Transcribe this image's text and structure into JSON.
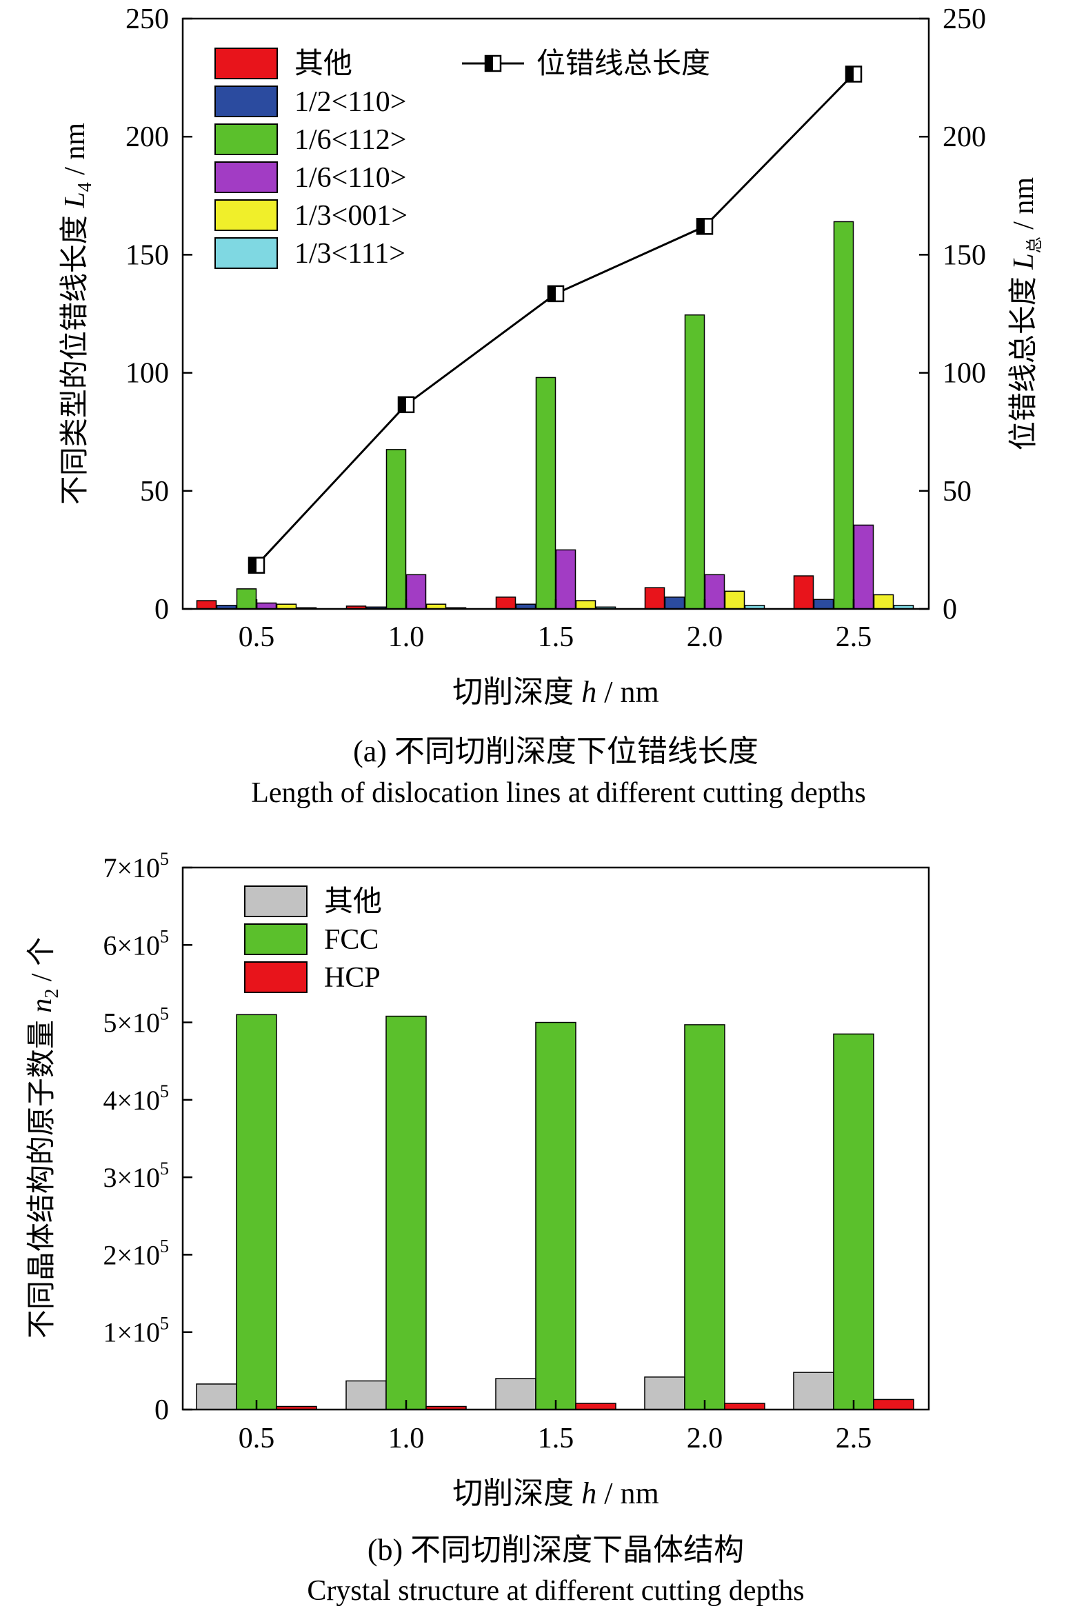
{
  "chart_data": [
    {
      "type": "bar",
      "categories": [
        "0.5",
        "1.0",
        "1.5",
        "2.0",
        "2.5"
      ],
      "series": [
        {
          "name": "其他",
          "values": [
            3.5,
            1.2,
            5.0,
            9.0,
            14.0
          ],
          "color": "#e8141b"
        },
        {
          "name": "1/2<110>",
          "values": [
            1.5,
            0.8,
            2.0,
            5.0,
            4.0
          ],
          "color": "#2b4b9f"
        },
        {
          "name": "1/6<112>",
          "values": [
            8.5,
            67.5,
            98.0,
            124.5,
            164.0
          ],
          "color": "#5bc02c"
        },
        {
          "name": "1/6<110>",
          "values": [
            2.5,
            14.5,
            25.0,
            14.5,
            35.5
          ],
          "color": "#a23cc4"
        },
        {
          "name": "1/3<001>",
          "values": [
            2.0,
            2.0,
            3.5,
            7.5,
            6.0
          ],
          "color": "#f0ef2a"
        },
        {
          "name": "1/3<111>",
          "values": [
            0.5,
            0.5,
            0.8,
            1.5,
            1.5
          ],
          "color": "#7fd8e2"
        }
      ],
      "line_series": {
        "name": "位错线总长度",
        "values": [
          18.5,
          86.5,
          133.5,
          162.0,
          226.5
        ]
      },
      "ylim": [
        0,
        250
      ],
      "y_ticks": [
        "0",
        "50",
        "100",
        "150",
        "200",
        "250"
      ],
      "y2_ticks": [
        "0",
        "50",
        "100",
        "150",
        "200",
        "250"
      ],
      "ylabel": "不同类型的位错线长度 L4 / nm",
      "ylabel_main": "不同类型的位错线长度 ",
      "ylabel_var": "L",
      "ylabel_sub": "4",
      "ylabel_unit": " / nm",
      "y2label": "位错线总长度 L总 / nm",
      "y2label_main": "位错线总长度 ",
      "y2label_var": "L",
      "y2label_sub": "总",
      "y2label_unit": " / nm",
      "xlabel": "切削深度 h / nm",
      "xlabel_main": "切削深度 ",
      "xlabel_var": "h",
      "xlabel_unit": " / nm",
      "caption_cn": "(a) 不同切削深度下位错线长度",
      "caption_en": "Length of dislocation lines at different cutting depths",
      "grid": false,
      "legend": "top-left"
    },
    {
      "type": "bar",
      "categories": [
        "0.5",
        "1.0",
        "1.5",
        "2.0",
        "2.5"
      ],
      "series": [
        {
          "name": "其他",
          "values": [
            33000,
            37000,
            40000,
            42000,
            48000
          ],
          "color": "#c2c2c2"
        },
        {
          "name": "FCC",
          "values": [
            510000,
            508000,
            500000,
            497000,
            485000
          ],
          "color": "#5bc02c"
        },
        {
          "name": "HCP",
          "values": [
            4000,
            4000,
            8000,
            8000,
            13000
          ],
          "color": "#e8141b"
        }
      ],
      "ylim": [
        0,
        700000
      ],
      "y_ticks_mantissa": [
        "0",
        "1×10",
        "2×10",
        "3×10",
        "4×10",
        "5×10",
        "6×10",
        "7×10"
      ],
      "y_ticks_exp": "5",
      "ylabel": "不同晶体结构的原子数量 n2 / 个",
      "ylabel_main": "不同晶体结构的原子数量 ",
      "ylabel_var": "n",
      "ylabel_sub": "2",
      "ylabel_unit": " / 个",
      "xlabel": "切削深度 h / nm",
      "xlabel_main": "切削深度 ",
      "xlabel_var": "h",
      "xlabel_unit": " / nm",
      "caption_cn": "(b) 不同切削深度下晶体结构",
      "caption_en": "Crystal structure at different cutting depths",
      "grid": false,
      "legend": "top-left"
    }
  ]
}
